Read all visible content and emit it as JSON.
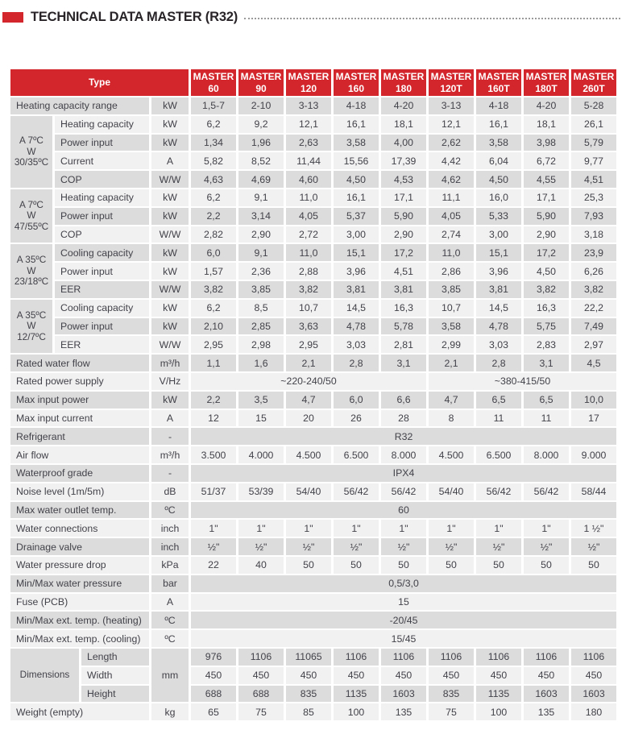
{
  "title": "TECHNICAL DATA MASTER (R32)",
  "colors": {
    "accent_red": "#d2262c",
    "row_dark": "#dcdcdc",
    "row_light": "#f1f1f1",
    "text": "#42424a"
  },
  "table": {
    "type_header": "Type",
    "models": [
      {
        "brand": "MASTER",
        "model": "60"
      },
      {
        "brand": "MASTER",
        "model": "90"
      },
      {
        "brand": "MASTER",
        "model": "120"
      },
      {
        "brand": "MASTER",
        "model": "160"
      },
      {
        "brand": "MASTER",
        "model": "180"
      },
      {
        "brand": "MASTER",
        "model": "120T"
      },
      {
        "brand": "MASTER",
        "model": "160T"
      },
      {
        "brand": "MASTER",
        "model": "180T"
      },
      {
        "brand": "MASTER",
        "model": "260T"
      }
    ],
    "rows": [
      {
        "label": "Heating capacity range",
        "lcols": 3,
        "unit": "kW",
        "values": [
          "1,5-7",
          "2-10",
          "3-13",
          "4-18",
          "4-20",
          "3-13",
          "4-18",
          "4-20",
          "5-28"
        ]
      },
      {
        "group": {
          "lines": [
            "A 7ºC",
            "W",
            "30/35ºC"
          ],
          "rows": 4,
          "cols": 1
        },
        "label": "Heating capacity",
        "lcols": 2,
        "unit": "kW",
        "values": [
          "6,2",
          "9,2",
          "12,1",
          "16,1",
          "18,1",
          "12,1",
          "16,1",
          "18,1",
          "26,1"
        ]
      },
      {
        "label": "Power input",
        "lcols": 2,
        "unit": "kW",
        "values": [
          "1,34",
          "1,96",
          "2,63",
          "3,58",
          "4,00",
          "2,62",
          "3,58",
          "3,98",
          "5,79"
        ]
      },
      {
        "label": "Current",
        "lcols": 2,
        "unit": "A",
        "values": [
          "5,82",
          "8,52",
          "11,44",
          "15,56",
          "17,39",
          "4,42",
          "6,04",
          "6,72",
          "9,77"
        ]
      },
      {
        "label": "COP",
        "lcols": 2,
        "unit": "W/W",
        "values": [
          "4,63",
          "4,69",
          "4,60",
          "4,50",
          "4,53",
          "4,62",
          "4,50",
          "4,55",
          "4,51"
        ]
      },
      {
        "group": {
          "lines": [
            "A 7ºC",
            "W",
            "47/55ºC"
          ],
          "rows": 3,
          "cols": 1
        },
        "label": "Heating capacity",
        "lcols": 2,
        "unit": "kW",
        "values": [
          "6,2",
          "9,1",
          "11,0",
          "16,1",
          "17,1",
          "11,1",
          "16,0",
          "17,1",
          "25,3"
        ]
      },
      {
        "label": "Power input",
        "lcols": 2,
        "unit": "kW",
        "values": [
          "2,2",
          "3,14",
          "4,05",
          "5,37",
          "5,90",
          "4,05",
          "5,33",
          "5,90",
          "7,93"
        ]
      },
      {
        "label": "COP",
        "lcols": 2,
        "unit": "W/W",
        "values": [
          "2,82",
          "2,90",
          "2,72",
          "3,00",
          "2,90",
          "2,74",
          "3,00",
          "2,90",
          "3,18"
        ]
      },
      {
        "group": {
          "lines": [
            "A 35ºC",
            "W",
            "23/18ºC"
          ],
          "rows": 3,
          "cols": 1
        },
        "label": "Cooling capacity",
        "lcols": 2,
        "unit": "kW",
        "values": [
          "6,0",
          "9,1",
          "11,0",
          "15,1",
          "17,2",
          "11,0",
          "15,1",
          "17,2",
          "23,9"
        ]
      },
      {
        "label": "Power input",
        "lcols": 2,
        "unit": "kW",
        "values": [
          "1,57",
          "2,36",
          "2,88",
          "3,96",
          "4,51",
          "2,86",
          "3,96",
          "4,50",
          "6,26"
        ]
      },
      {
        "label": "EER",
        "lcols": 2,
        "unit": "W/W",
        "values": [
          "3,82",
          "3,85",
          "3,82",
          "3,81",
          "3,81",
          "3,85",
          "3,81",
          "3,82",
          "3,82"
        ]
      },
      {
        "group": {
          "lines": [
            "A 35ºC",
            "W",
            "12/7ºC"
          ],
          "rows": 3,
          "cols": 1
        },
        "label": "Cooling capacity",
        "lcols": 2,
        "unit": "kW",
        "values": [
          "6,2",
          "8,5",
          "10,7",
          "14,5",
          "16,3",
          "10,7",
          "14,5",
          "16,3",
          "22,2"
        ]
      },
      {
        "label": "Power input",
        "lcols": 2,
        "unit": "kW",
        "values": [
          "2,10",
          "2,85",
          "3,63",
          "4,78",
          "5,78",
          "3,58",
          "4,78",
          "5,75",
          "7,49"
        ]
      },
      {
        "label": "EER",
        "lcols": 2,
        "unit": "W/W",
        "values": [
          "2,95",
          "2,98",
          "2,95",
          "3,03",
          "2,81",
          "2,99",
          "3,03",
          "2,83",
          "2,97"
        ]
      },
      {
        "label": "Rated water flow",
        "lcols": 3,
        "unit": "m³/h",
        "values": [
          "1,1",
          "1,6",
          "2,1",
          "2,8",
          "3,1",
          "2,1",
          "2,8",
          "3,1",
          "4,5"
        ]
      },
      {
        "label": "Rated power supply",
        "lcols": 3,
        "unit": "V/Hz",
        "values": [
          {
            "t": "~220-240/50",
            "c": 5
          },
          {
            "t": "~380-415/50",
            "c": 4
          }
        ]
      },
      {
        "label": "Max input power",
        "lcols": 3,
        "unit": "kW",
        "values": [
          "2,2",
          "3,5",
          "4,7",
          "6,0",
          "6,6",
          "4,7",
          "6,5",
          "6,5",
          "10,0"
        ]
      },
      {
        "label": "Max input current",
        "lcols": 3,
        "unit": "A",
        "values": [
          "12",
          "15",
          "20",
          "26",
          "28",
          "8",
          "11",
          "11",
          "17"
        ]
      },
      {
        "label": "Refrigerant",
        "lcols": 3,
        "unit": "-",
        "values": [
          {
            "t": "R32",
            "c": 9
          }
        ]
      },
      {
        "label": "Air flow",
        "lcols": 3,
        "unit": "m³/h",
        "values": [
          "3.500",
          "4.000",
          "4.500",
          "6.500",
          "8.000",
          "4.500",
          "6.500",
          "8.000",
          "9.000"
        ]
      },
      {
        "label": "Waterproof grade",
        "lcols": 3,
        "unit": "-",
        "values": [
          {
            "t": "IPX4",
            "c": 9
          }
        ]
      },
      {
        "label": "Noise level (1m/5m)",
        "lcols": 3,
        "unit": "dB",
        "values": [
          "51/37",
          "53/39",
          "54/40",
          "56/42",
          "56/42",
          "54/40",
          "56/42",
          "56/42",
          "58/44"
        ]
      },
      {
        "label": "Max water outlet temp.",
        "lcols": 3,
        "unit": "ºC",
        "values": [
          {
            "t": "60",
            "c": 9
          }
        ]
      },
      {
        "label": "Water connections",
        "lcols": 3,
        "unit": "inch",
        "values": [
          "1\"",
          "1\"",
          "1\"",
          "1\"",
          "1\"",
          "1\"",
          "1\"",
          "1\"",
          "1 ½\""
        ]
      },
      {
        "label": "Drainage valve",
        "lcols": 3,
        "unit": "inch",
        "values": [
          "½\"",
          "½\"",
          "½\"",
          "½\"",
          "½\"",
          "½\"",
          "½\"",
          "½\"",
          "½\""
        ]
      },
      {
        "label": "Water pressure drop",
        "lcols": 3,
        "unit": "kPa",
        "values": [
          "22",
          "40",
          "50",
          "50",
          "50",
          "50",
          "50",
          "50",
          "50"
        ]
      },
      {
        "label": "Min/Max water pressure",
        "lcols": 3,
        "unit": "bar",
        "values": [
          {
            "t": "0,5/3,0",
            "c": 9
          }
        ]
      },
      {
        "label": "Fuse (PCB)",
        "lcols": 3,
        "unit": "A",
        "values": [
          {
            "t": "15",
            "c": 9
          }
        ]
      },
      {
        "label": "Min/Max ext. temp. (heating)",
        "lcols": 3,
        "unit": "ºC",
        "values": [
          {
            "t": "-20/45",
            "c": 9
          }
        ]
      },
      {
        "label": "Min/Max ext. temp. (cooling)",
        "lcols": 3,
        "unit": "ºC",
        "values": [
          {
            "t": "15/45",
            "c": 9
          }
        ]
      },
      {
        "group": {
          "lines": [
            "Dimensions"
          ],
          "rows": 3,
          "cols": 2
        },
        "label": "Length",
        "lcols": 1,
        "unit": {
          "t": "mm",
          "rows": 3
        },
        "values": [
          "976",
          "1106",
          "11065",
          "1106",
          "1106",
          "1106",
          "1106",
          "1106",
          "1106"
        ]
      },
      {
        "label": "Width",
        "lcols": 1,
        "values": [
          "450",
          "450",
          "450",
          "450",
          "450",
          "450",
          "450",
          "450",
          "450"
        ]
      },
      {
        "label": "Height",
        "lcols": 1,
        "values": [
          "688",
          "688",
          "835",
          "1135",
          "1603",
          "835",
          "1135",
          "1603",
          "1603"
        ]
      },
      {
        "label": "Weight (empty)",
        "lcols": 3,
        "unit": "kg",
        "values": [
          "65",
          "75",
          "85",
          "100",
          "135",
          "75",
          "100",
          "135",
          "180"
        ]
      }
    ]
  }
}
